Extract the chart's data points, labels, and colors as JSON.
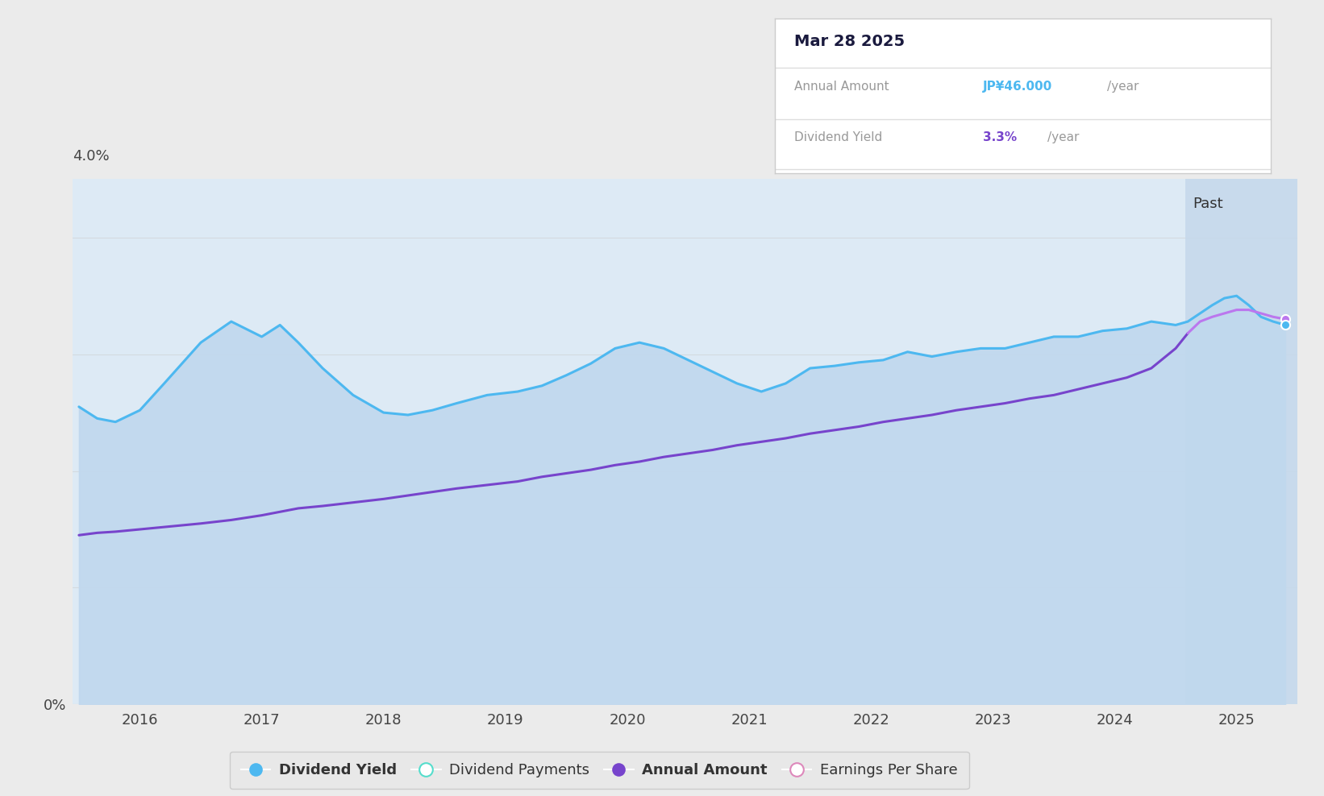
{
  "bg_color": "#ebebeb",
  "chart_bg_color": "#ffffff",
  "plot_area_fill": "#ddeaf5",
  "past_fill": "#c8dff0",
  "past_start": 2024.58,
  "x_min": 2015.45,
  "x_max": 2025.5,
  "y_min": 0.0,
  "y_max": 4.5,
  "yticks_pos": [
    0.0,
    4.0
  ],
  "ytick_labels": [
    "0%",
    "4.0%"
  ],
  "xticks": [
    2016,
    2017,
    2018,
    2019,
    2020,
    2021,
    2022,
    2023,
    2024,
    2025
  ],
  "grid_color": "#cccccc",
  "grid_alpha": 0.5,
  "dividend_yield_color": "#4db8f0",
  "dividend_yield_fill_color": "#c0d8ee",
  "annual_amount_color": "#7744cc",
  "annual_amount_past_color": "#bb77ee",
  "tooltip_title": "Mar 28 2025",
  "tooltip_annual_label": "Annual Amount",
  "tooltip_annual_value": "JP¥46.000",
  "tooltip_annual_suffix": "/year",
  "tooltip_annual_color": "#4db8f0",
  "tooltip_yield_label": "Dividend Yield",
  "tooltip_yield_value": "3.3%",
  "tooltip_yield_suffix": "/year",
  "tooltip_yield_color": "#7744cc",
  "legend_items": [
    "Dividend Yield",
    "Dividend Payments",
    "Annual Amount",
    "Earnings Per Share"
  ],
  "legend_colors": [
    "#4db8f0",
    "#55ddcc",
    "#7744cc",
    "#dd88bb"
  ],
  "legend_filled": [
    true,
    false,
    true,
    false
  ],
  "past_label": "Past",
  "dividend_yield_x": [
    2015.5,
    2015.65,
    2015.8,
    2016.0,
    2016.2,
    2016.5,
    2016.75,
    2017.0,
    2017.15,
    2017.3,
    2017.5,
    2017.75,
    2018.0,
    2018.2,
    2018.4,
    2018.6,
    2018.85,
    2019.1,
    2019.3,
    2019.5,
    2019.7,
    2019.9,
    2020.1,
    2020.3,
    2020.5,
    2020.7,
    2020.9,
    2021.1,
    2021.3,
    2021.5,
    2021.7,
    2021.9,
    2022.1,
    2022.3,
    2022.5,
    2022.7,
    2022.9,
    2023.1,
    2023.3,
    2023.5,
    2023.7,
    2023.9,
    2024.1,
    2024.3,
    2024.5,
    2024.6,
    2024.7,
    2024.8,
    2024.9,
    2025.0,
    2025.1,
    2025.2,
    2025.3,
    2025.4
  ],
  "dividend_yield_y": [
    2.55,
    2.45,
    2.42,
    2.52,
    2.75,
    3.1,
    3.28,
    3.15,
    3.25,
    3.1,
    2.88,
    2.65,
    2.5,
    2.48,
    2.52,
    2.58,
    2.65,
    2.68,
    2.73,
    2.82,
    2.92,
    3.05,
    3.1,
    3.05,
    2.95,
    2.85,
    2.75,
    2.68,
    2.75,
    2.88,
    2.9,
    2.93,
    2.95,
    3.02,
    2.98,
    3.02,
    3.05,
    3.05,
    3.1,
    3.15,
    3.15,
    3.2,
    3.22,
    3.28,
    3.25,
    3.28,
    3.35,
    3.42,
    3.48,
    3.5,
    3.42,
    3.32,
    3.28,
    3.25
  ],
  "annual_amount_x": [
    2015.5,
    2015.65,
    2015.8,
    2016.0,
    2016.2,
    2016.5,
    2016.75,
    2017.0,
    2017.15,
    2017.3,
    2017.5,
    2017.75,
    2018.0,
    2018.2,
    2018.4,
    2018.6,
    2018.85,
    2019.1,
    2019.3,
    2019.5,
    2019.7,
    2019.9,
    2020.1,
    2020.3,
    2020.5,
    2020.7,
    2020.9,
    2021.1,
    2021.3,
    2021.5,
    2021.7,
    2021.9,
    2022.1,
    2022.3,
    2022.5,
    2022.7,
    2022.9,
    2023.1,
    2023.3,
    2023.5,
    2023.7,
    2023.9,
    2024.1,
    2024.3,
    2024.5,
    2024.6,
    2024.7,
    2024.8,
    2024.9,
    2025.0,
    2025.1,
    2025.2,
    2025.3,
    2025.4
  ],
  "annual_amount_y": [
    1.45,
    1.47,
    1.48,
    1.5,
    1.52,
    1.55,
    1.58,
    1.62,
    1.65,
    1.68,
    1.7,
    1.73,
    1.76,
    1.79,
    1.82,
    1.85,
    1.88,
    1.91,
    1.95,
    1.98,
    2.01,
    2.05,
    2.08,
    2.12,
    2.15,
    2.18,
    2.22,
    2.25,
    2.28,
    2.32,
    2.35,
    2.38,
    2.42,
    2.45,
    2.48,
    2.52,
    2.55,
    2.58,
    2.62,
    2.65,
    2.7,
    2.75,
    2.8,
    2.88,
    3.05,
    3.18,
    3.28,
    3.32,
    3.35,
    3.38,
    3.38,
    3.35,
    3.32,
    3.3
  ]
}
